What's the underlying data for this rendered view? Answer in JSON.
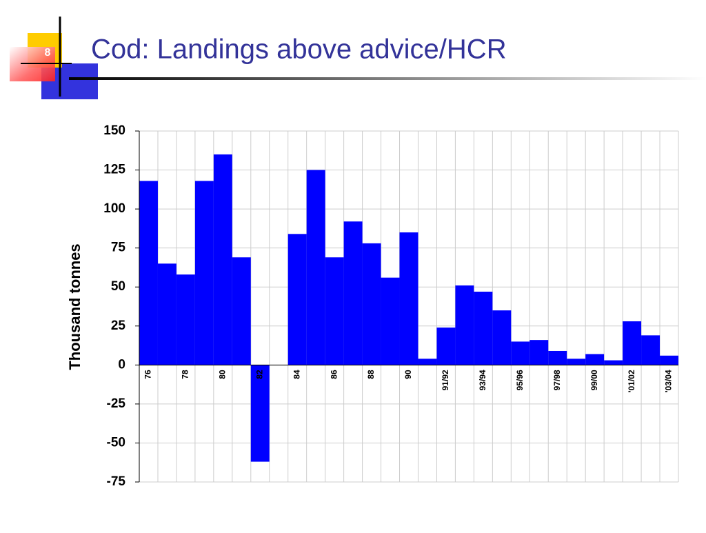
{
  "slide_number": "8",
  "chart_data": {
    "type": "bar",
    "title": "Cod: Landings above advice/HCR",
    "y_label": "Thousand tonnes",
    "categories": [
      "76",
      null,
      "78",
      null,
      "80",
      null,
      "82",
      null,
      "84",
      null,
      "86",
      null,
      "88",
      null,
      "90",
      null,
      "91/92",
      null,
      "93/94",
      null,
      "95/96",
      null,
      "97/98",
      null,
      "99/00",
      null,
      "'01/02",
      null,
      "'03/04"
    ],
    "values": [
      118,
      65,
      58,
      118,
      135,
      69,
      -62,
      0,
      84,
      125,
      69,
      92,
      78,
      56,
      85,
      4,
      24,
      51,
      47,
      35,
      15,
      16,
      9,
      4,
      7,
      3,
      28,
      19,
      6
    ],
    "color": "#0000ff",
    "ylim": [
      -75,
      150
    ],
    "yticks": [
      -75,
      -50,
      -25,
      0,
      25,
      50,
      75,
      100,
      125,
      150
    ],
    "grid": true
  }
}
